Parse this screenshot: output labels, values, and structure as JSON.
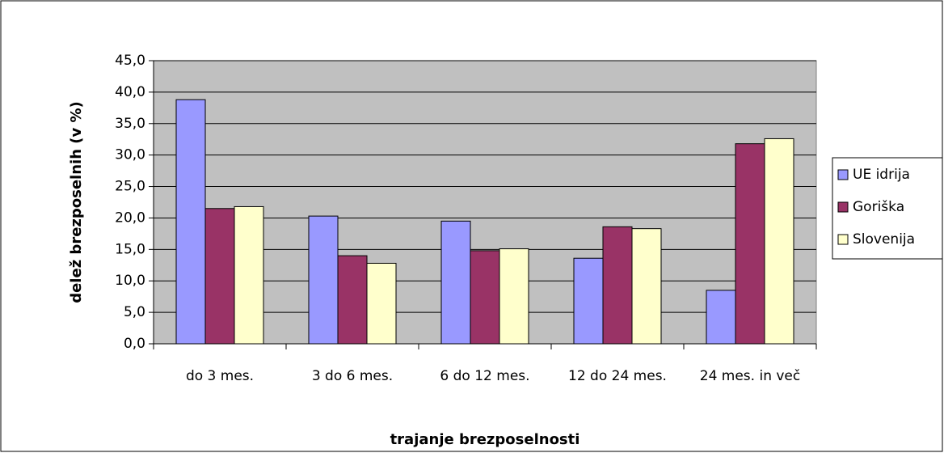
{
  "chart_data": {
    "type": "bar",
    "x_label": "trajanje brezposelnosti",
    "y_label": "delež brezposelnih (v %)",
    "categories": [
      "do 3 mes.",
      "3 do 6 mes.",
      "6 do 12 mes.",
      "12 do 24 mes.",
      "24 mes. in več"
    ],
    "series": [
      {
        "name": "UE idrija",
        "color": "#9999ff",
        "values": [
          38.8,
          20.3,
          19.5,
          13.6,
          8.5
        ]
      },
      {
        "name": "Goriška",
        "color": "#993366",
        "values": [
          21.5,
          14.0,
          14.8,
          18.6,
          31.8
        ]
      },
      {
        "name": "Slovenija",
        "color": "#ffffcc",
        "values": [
          21.8,
          12.8,
          15.1,
          18.3,
          32.6
        ]
      }
    ],
    "ylim": [
      0,
      45
    ],
    "yticks": [
      {
        "value": 0,
        "label": "0,0"
      },
      {
        "value": 5,
        "label": "5,0"
      },
      {
        "value": 10,
        "label": "10,0"
      },
      {
        "value": 15,
        "label": "15,0"
      },
      {
        "value": 20,
        "label": "20,0"
      },
      {
        "value": 25,
        "label": "25,0"
      },
      {
        "value": 30,
        "label": "30,0"
      },
      {
        "value": 35,
        "label": "35,0"
      },
      {
        "value": 40,
        "label": "40,0"
      },
      {
        "value": 45,
        "label": "45,0"
      }
    ],
    "grid": true,
    "plot_background": "#c0c0c0",
    "legend": "right"
  }
}
